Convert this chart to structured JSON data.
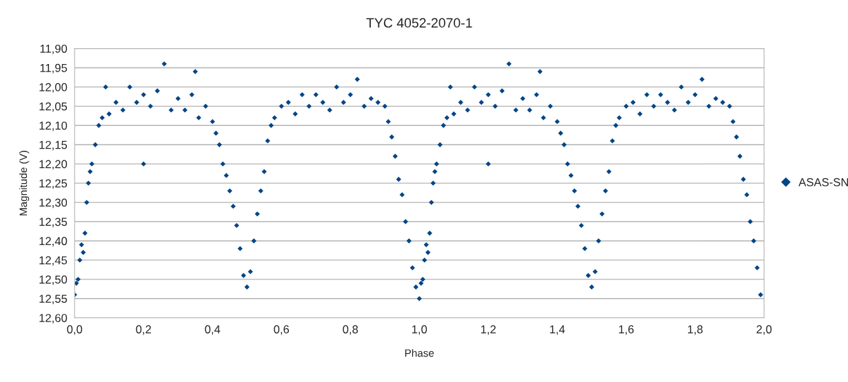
{
  "chart_data": {
    "type": "scatter",
    "title": "TYC 4052-2070-1",
    "xlabel": "Phase",
    "ylabel": "Magnitude (V)",
    "xlim": [
      0,
      2
    ],
    "xticks": [
      {
        "value": 0,
        "label": "0,0"
      },
      {
        "value": 0.2,
        "label": "0,2"
      },
      {
        "value": 0.4,
        "label": "0,4"
      },
      {
        "value": 0.6,
        "label": "0,6"
      },
      {
        "value": 0.8,
        "label": "0,8"
      },
      {
        "value": 1.0,
        "label": "1,0"
      },
      {
        "value": 1.2,
        "label": "1,2"
      },
      {
        "value": 1.4,
        "label": "1,4"
      },
      {
        "value": 1.6,
        "label": "1,6"
      },
      {
        "value": 1.8,
        "label": "1,8"
      },
      {
        "value": 2.0,
        "label": "2,0"
      }
    ],
    "ylim": [
      12.6,
      11.9
    ],
    "yticks": [
      {
        "value": 11.9,
        "label": "11,90"
      },
      {
        "value": 11.95,
        "label": "11,95"
      },
      {
        "value": 12.0,
        "label": "12,00"
      },
      {
        "value": 12.05,
        "label": "12,05"
      },
      {
        "value": 12.1,
        "label": "12,10"
      },
      {
        "value": 12.15,
        "label": "12,15"
      },
      {
        "value": 12.2,
        "label": "12,20"
      },
      {
        "value": 12.25,
        "label": "12,25"
      },
      {
        "value": 12.3,
        "label": "12,30"
      },
      {
        "value": 12.35,
        "label": "12,35"
      },
      {
        "value": 12.4,
        "label": "12,40"
      },
      {
        "value": 12.45,
        "label": "12,45"
      },
      {
        "value": 12.5,
        "label": "12,50"
      },
      {
        "value": 12.55,
        "label": "12,55"
      },
      {
        "value": 12.6,
        "label": "12,60"
      }
    ],
    "grid": "y",
    "legend": "right",
    "marker": "diamond",
    "series": [
      {
        "name": "ASAS-SN",
        "color": "#004586",
        "x": [
          0.0,
          0.005,
          0.01,
          0.015,
          0.02,
          0.025,
          0.03,
          0.035,
          0.04,
          0.045,
          0.05,
          0.06,
          0.07,
          0.08,
          0.09,
          0.1,
          0.12,
          0.14,
          0.16,
          0.18,
          0.2,
          0.2,
          0.22,
          0.24,
          0.26,
          0.28,
          0.3,
          0.32,
          0.34,
          0.35,
          0.36,
          0.38,
          0.4,
          0.41,
          0.42,
          0.43,
          0.44,
          0.45,
          0.46,
          0.47,
          0.48,
          0.49,
          0.5,
          0.51,
          0.52,
          0.53,
          0.54,
          0.55,
          0.56,
          0.57,
          0.58,
          0.6,
          0.62,
          0.64,
          0.66,
          0.68,
          0.7,
          0.72,
          0.74,
          0.76,
          0.78,
          0.8,
          0.82,
          0.84,
          0.86,
          0.88,
          0.9,
          0.91,
          0.92,
          0.93,
          0.94,
          0.95,
          0.96,
          0.97,
          0.98,
          0.99,
          1.0,
          1.005,
          1.01,
          1.015,
          1.02,
          1.025,
          1.03,
          1.035,
          1.04,
          1.045,
          1.05,
          1.06,
          1.07,
          1.08,
          1.09,
          1.1,
          1.12,
          1.14,
          1.16,
          1.18,
          1.2,
          1.2,
          1.22,
          1.24,
          1.26,
          1.28,
          1.3,
          1.32,
          1.34,
          1.35,
          1.36,
          1.38,
          1.4,
          1.41,
          1.42,
          1.43,
          1.44,
          1.45,
          1.46,
          1.47,
          1.48,
          1.49,
          1.5,
          1.51,
          1.52,
          1.53,
          1.54,
          1.55,
          1.56,
          1.57,
          1.58,
          1.6,
          1.62,
          1.64,
          1.66,
          1.68,
          1.7,
          1.72,
          1.74,
          1.76,
          1.78,
          1.8,
          1.82,
          1.84,
          1.86,
          1.88,
          1.9,
          1.91,
          1.92,
          1.93,
          1.94,
          1.95,
          1.96,
          1.97,
          1.98,
          1.99
        ],
        "values": [
          12.54,
          12.51,
          12.5,
          12.45,
          12.41,
          12.43,
          12.38,
          12.3,
          12.25,
          12.22,
          12.2,
          12.15,
          12.1,
          12.08,
          12.0,
          12.07,
          12.04,
          12.06,
          12.0,
          12.04,
          12.2,
          12.02,
          12.05,
          12.01,
          11.94,
          12.06,
          12.03,
          12.06,
          12.02,
          11.96,
          12.08,
          12.05,
          12.09,
          12.12,
          12.15,
          12.2,
          12.23,
          12.27,
          12.31,
          12.36,
          12.42,
          12.49,
          12.52,
          12.48,
          12.4,
          12.33,
          12.27,
          12.22,
          12.14,
          12.1,
          12.08,
          12.05,
          12.04,
          12.07,
          12.02,
          12.05,
          12.02,
          12.04,
          12.06,
          12.0,
          12.04,
          12.02,
          11.98,
          12.05,
          12.03,
          12.04,
          12.05,
          12.09,
          12.13,
          12.18,
          12.24,
          12.28,
          12.35,
          12.4,
          12.47,
          12.52,
          12.55,
          12.51,
          12.5,
          12.45,
          12.41,
          12.43,
          12.38,
          12.3,
          12.25,
          12.22,
          12.2,
          12.15,
          12.1,
          12.08,
          12.0,
          12.07,
          12.04,
          12.06,
          12.0,
          12.04,
          12.2,
          12.02,
          12.05,
          12.01,
          11.94,
          12.06,
          12.03,
          12.06,
          12.02,
          11.96,
          12.08,
          12.05,
          12.09,
          12.12,
          12.15,
          12.2,
          12.23,
          12.27,
          12.31,
          12.36,
          12.42,
          12.49,
          12.52,
          12.48,
          12.4,
          12.33,
          12.27,
          12.22,
          12.14,
          12.1,
          12.08,
          12.05,
          12.04,
          12.07,
          12.02,
          12.05,
          12.02,
          12.04,
          12.06,
          12.0,
          12.04,
          12.02,
          11.98,
          12.05,
          12.03,
          12.04,
          12.05,
          12.09,
          12.13,
          12.18,
          12.24,
          12.28,
          12.35,
          12.4,
          12.47,
          12.54
        ]
      }
    ]
  }
}
